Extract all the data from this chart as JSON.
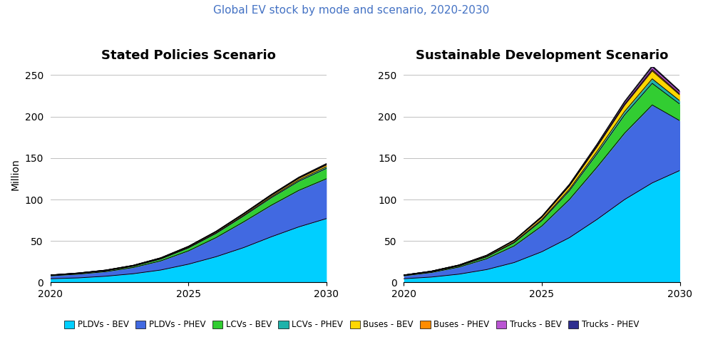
{
  "title": "Global EV stock by mode and scenario, 2020-2030",
  "title_color": "#4472C4",
  "subplot_titles": [
    "Stated Policies Scenario",
    "Sustainable Development Scenario"
  ],
  "ylabel": "Million",
  "years": [
    2020,
    2021,
    2022,
    2023,
    2024,
    2025,
    2026,
    2027,
    2028,
    2029,
    2030
  ],
  "ylim": [
    0,
    260
  ],
  "yticks": [
    0,
    50,
    100,
    150,
    200,
    250
  ],
  "sps_data": {
    "PLDVs_BEV": [
      4.5,
      5.5,
      7.5,
      10.5,
      15.0,
      22.0,
      31.0,
      42.0,
      55.0,
      67.0,
      77.0
    ],
    "PLDVs_PHEV": [
      3.5,
      4.5,
      5.5,
      7.5,
      11.0,
      16.0,
      23.0,
      31.0,
      38.0,
      44.0,
      48.0
    ],
    "LCVs_BEV": [
      0.5,
      0.7,
      1.0,
      1.5,
      2.2,
      3.5,
      5.0,
      7.0,
      9.0,
      11.0,
      12.5
    ],
    "LCVs_PHEV": [
      0.1,
      0.15,
      0.2,
      0.3,
      0.4,
      0.6,
      0.8,
      1.0,
      1.3,
      1.6,
      2.0
    ],
    "Buses_BEV": [
      0.3,
      0.4,
      0.5,
      0.6,
      0.8,
      1.0,
      1.2,
      1.4,
      1.6,
      1.9,
      2.1
    ],
    "Buses_PHEV": [
      0.05,
      0.07,
      0.09,
      0.12,
      0.15,
      0.18,
      0.22,
      0.27,
      0.33,
      0.4,
      0.48
    ],
    "Trucks_BEV": [
      0.05,
      0.07,
      0.1,
      0.13,
      0.18,
      0.25,
      0.35,
      0.48,
      0.6,
      0.73,
      0.87
    ],
    "Trucks_PHEV": [
      0.02,
      0.03,
      0.04,
      0.06,
      0.08,
      0.11,
      0.15,
      0.2,
      0.26,
      0.33,
      0.42
    ]
  },
  "sds_data": {
    "PLDVs_BEV": [
      4.5,
      6.5,
      10.0,
      15.5,
      24.0,
      37.0,
      54.0,
      76.0,
      100.0,
      120.0,
      135.0
    ],
    "PLDVs_PHEV": [
      3.5,
      5.5,
      8.5,
      13.0,
      20.0,
      31.0,
      46.0,
      63.0,
      80.0,
      94.0,
      60.0
    ],
    "LCVs_BEV": [
      0.5,
      0.8,
      1.3,
      2.2,
      3.8,
      6.5,
      10.5,
      16.0,
      22.0,
      26.0,
      20.0
    ],
    "LCVs_PHEV": [
      0.1,
      0.2,
      0.3,
      0.5,
      0.8,
      1.3,
      2.0,
      3.0,
      4.2,
      5.5,
      4.0
    ],
    "Buses_BEV": [
      0.3,
      0.5,
      0.7,
      1.1,
      1.7,
      2.6,
      3.8,
      5.5,
      7.5,
      9.5,
      7.0
    ],
    "Buses_PHEV": [
      0.05,
      0.08,
      0.12,
      0.18,
      0.28,
      0.43,
      0.65,
      0.95,
      1.3,
      1.7,
      1.3
    ],
    "Trucks_BEV": [
      0.05,
      0.09,
      0.15,
      0.25,
      0.42,
      0.7,
      1.1,
      1.7,
      2.5,
      3.3,
      2.6
    ],
    "Trucks_PHEV": [
      0.02,
      0.04,
      0.06,
      0.1,
      0.17,
      0.28,
      0.45,
      0.7,
      1.0,
      1.4,
      1.1
    ]
  },
  "colors": {
    "PLDVs_BEV": "#00CFFF",
    "PLDVs_PHEV": "#4169E1",
    "LCVs_BEV": "#32CD32",
    "LCVs_PHEV": "#20B2AA",
    "Buses_BEV": "#FFD700",
    "Buses_PHEV": "#FF8C00",
    "Trucks_BEV": "#BA55D3",
    "Trucks_PHEV": "#2F2F8F"
  },
  "legend_labels": [
    "PLDVs - BEV",
    "PLDVs - PHEV",
    "LCVs - BEV",
    "LCVs - PHEV",
    "Buses - BEV",
    "Buses - PHEV",
    "Trucks - BEV",
    "Trucks - PHEV"
  ],
  "legend_keys": [
    "PLDVs_BEV",
    "PLDVs_PHEV",
    "LCVs_BEV",
    "LCVs_PHEV",
    "Buses_BEV",
    "Buses_PHEV",
    "Trucks_BEV",
    "Trucks_PHEV"
  ]
}
